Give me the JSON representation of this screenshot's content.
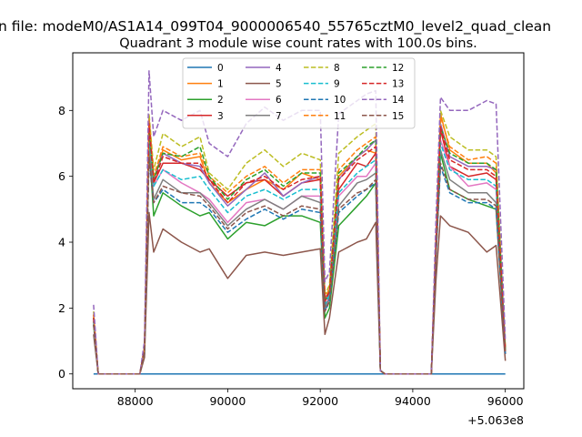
{
  "chart_data": {
    "type": "line",
    "suptitle": "n file: modeM0/AS1A14_099T04_9000006540_55765cztM0_level2_quad_clean",
    "title": "Quadrant 3 module wise count rates with 100.0s bins.",
    "xlabel": "",
    "ylabel": "",
    "x_offset_label": "+5.063e8",
    "xlim": [
      86650,
      96400
    ],
    "ylim": [
      -0.45,
      9.75
    ],
    "x_ticks": [
      88000,
      90000,
      92000,
      94000,
      96000
    ],
    "x_tick_labels": [
      "88000",
      "90000",
      "92000",
      "94000",
      "96000"
    ],
    "y_ticks": [
      0,
      2,
      4,
      6,
      8
    ],
    "y_tick_labels": [
      "0",
      "2",
      "4",
      "6",
      "8"
    ],
    "grid": false,
    "legend": {
      "placement": "top-center",
      "columns": 4
    },
    "x": [
      87100,
      87200,
      88100,
      88200,
      88300,
      88400,
      88600,
      89000,
      89400,
      89600,
      90000,
      90400,
      90800,
      91200,
      91600,
      92000,
      92100,
      92200,
      92400,
      92800,
      93000,
      93200,
      93300,
      93400,
      94400,
      94500,
      94600,
      94800,
      95200,
      95600,
      95800,
      96000
    ],
    "series": [
      {
        "name": "0",
        "color": "#1f77b4",
        "dashed": false,
        "values": [
          0,
          0,
          0,
          0,
          0,
          0,
          0,
          0,
          0,
          0,
          0,
          0,
          0,
          0,
          0,
          0,
          0,
          0,
          0,
          0,
          0,
          0,
          0,
          0,
          0,
          0,
          0,
          0,
          0,
          0,
          0,
          0
        ]
      },
      {
        "name": "1",
        "color": "#ff7f0e",
        "dashed": false,
        "values": [
          1.6,
          0,
          0,
          0.8,
          7.8,
          5.9,
          6.8,
          6.5,
          6.6,
          5.8,
          5.2,
          5.6,
          5.9,
          5.6,
          6.1,
          5.9,
          2.3,
          2.4,
          6.0,
          6.6,
          6.8,
          6.7,
          0.1,
          0,
          0,
          3.8,
          7.9,
          6.8,
          6.4,
          6.4,
          6.1,
          0.8
        ]
      },
      {
        "name": "2",
        "color": "#2ca02c",
        "dashed": false,
        "values": [
          1.5,
          0,
          0,
          0.6,
          7.0,
          4.8,
          5.5,
          5.1,
          4.8,
          4.9,
          4.1,
          4.6,
          4.5,
          4.8,
          4.8,
          4.6,
          1.7,
          2.0,
          4.5,
          5.1,
          5.4,
          5.8,
          0.1,
          0,
          0,
          3.5,
          6.7,
          5.6,
          5.3,
          5.1,
          5.0,
          0.6
        ]
      },
      {
        "name": "3",
        "color": "#d62728",
        "dashed": false,
        "values": [
          1.8,
          0,
          0,
          0.8,
          7.5,
          5.8,
          6.4,
          6.4,
          6.2,
          5.9,
          5.4,
          5.8,
          5.9,
          5.4,
          5.8,
          5.9,
          2.3,
          2.5,
          5.6,
          6.4,
          6.3,
          6.7,
          0.1,
          0,
          0,
          3.9,
          7.4,
          6.3,
          6.0,
          6.1,
          5.9,
          0.7
        ]
      },
      {
        "name": "4",
        "color": "#9467bd",
        "dashed": false,
        "values": [
          1.7,
          0,
          0,
          0.8,
          7.8,
          5.9,
          6.7,
          6.4,
          6.3,
          5.8,
          5.1,
          5.6,
          6.1,
          5.4,
          5.8,
          6.0,
          2.2,
          2.5,
          5.9,
          6.6,
          6.8,
          7.1,
          0.1,
          0,
          0,
          3.8,
          7.6,
          6.6,
          6.3,
          6.3,
          6.2,
          0.7
        ]
      },
      {
        "name": "5",
        "color": "#8c564b",
        "dashed": false,
        "values": [
          1.2,
          0,
          0,
          0.5,
          4.9,
          3.7,
          4.4,
          4.0,
          3.7,
          3.8,
          2.9,
          3.6,
          3.7,
          3.6,
          3.7,
          3.8,
          1.2,
          1.7,
          3.7,
          4.0,
          4.1,
          4.6,
          0.1,
          0,
          0,
          2.8,
          4.8,
          4.5,
          4.3,
          3.7,
          3.9,
          0.4
        ]
      },
      {
        "name": "6",
        "color": "#e377c2",
        "dashed": false,
        "values": [
          1.6,
          0,
          0,
          0.8,
          7.4,
          5.7,
          6.2,
          5.8,
          5.5,
          5.3,
          4.6,
          5.2,
          5.3,
          5.0,
          5.4,
          5.4,
          2.0,
          2.4,
          5.4,
          6.0,
          6.0,
          6.4,
          0.1,
          0,
          0,
          3.7,
          7.1,
          6.3,
          5.7,
          5.8,
          5.6,
          0.6
        ]
      },
      {
        "name": "7",
        "color": "#7f7f7f",
        "dashed": false,
        "values": [
          1.6,
          0,
          0,
          0.7,
          7.0,
          5.3,
          5.9,
          5.5,
          5.5,
          5.2,
          4.5,
          5.0,
          5.3,
          5.0,
          5.4,
          5.2,
          2.0,
          2.3,
          5.1,
          5.8,
          5.9,
          6.1,
          0.1,
          0,
          0,
          3.6,
          6.8,
          5.9,
          5.5,
          5.5,
          5.2,
          0.6
        ]
      },
      {
        "name": "8",
        "color": "#bcbd22",
        "dashed": true,
        "values": [
          1.9,
          0,
          0,
          0.8,
          7.9,
          6.2,
          7.3,
          6.9,
          7.2,
          6.1,
          5.6,
          6.4,
          6.8,
          6.3,
          6.7,
          6.5,
          2.4,
          2.7,
          6.7,
          7.2,
          7.4,
          7.6,
          0.1,
          0,
          0,
          4.1,
          8.0,
          7.2,
          6.8,
          6.8,
          6.6,
          0.8
        ]
      },
      {
        "name": "9",
        "color": "#17becf",
        "dashed": true,
        "values": [
          1.6,
          0,
          0,
          0.8,
          7.3,
          5.7,
          6.2,
          5.9,
          6.0,
          5.6,
          4.9,
          5.4,
          5.6,
          5.3,
          5.6,
          5.6,
          2.1,
          2.4,
          5.5,
          6.1,
          6.3,
          6.5,
          0.1,
          0,
          0,
          3.8,
          7.0,
          6.2,
          5.9,
          5.9,
          5.7,
          0.7
        ]
      },
      {
        "name": "10",
        "color": "#1f77b4",
        "dashed": true,
        "values": [
          1.5,
          0,
          0,
          0.7,
          6.5,
          5.2,
          5.6,
          5.2,
          5.2,
          5.0,
          4.3,
          4.7,
          5.0,
          4.7,
          5.0,
          4.9,
          1.9,
          2.2,
          4.9,
          5.4,
          5.6,
          5.8,
          0.1,
          0,
          0,
          3.5,
          6.3,
          5.5,
          5.2,
          5.2,
          5.0,
          0.6
        ]
      },
      {
        "name": "11",
        "color": "#ff7f0e",
        "dashed": true,
        "values": [
          1.8,
          0,
          0,
          0.8,
          7.7,
          6.0,
          6.9,
          6.6,
          6.7,
          6.0,
          5.5,
          6.0,
          6.3,
          5.8,
          6.2,
          6.2,
          2.3,
          2.6,
          6.2,
          6.8,
          7.0,
          7.2,
          0.1,
          0,
          0,
          3.9,
          7.8,
          6.9,
          6.5,
          6.6,
          6.4,
          0.7
        ]
      },
      {
        "name": "12",
        "color": "#2ca02c",
        "dashed": true,
        "values": [
          1.7,
          0,
          0,
          0.8,
          7.4,
          5.9,
          6.7,
          6.6,
          6.9,
          6.0,
          5.3,
          5.9,
          6.2,
          5.7,
          6.1,
          6.1,
          2.2,
          2.5,
          6.1,
          6.6,
          6.9,
          7.1,
          0.1,
          0,
          0,
          3.8,
          7.5,
          6.7,
          6.4,
          6.4,
          6.2,
          0.7
        ]
      },
      {
        "name": "13",
        "color": "#d62728",
        "dashed": true,
        "values": [
          1.7,
          0,
          0,
          0.8,
          7.6,
          5.8,
          6.6,
          6.4,
          6.4,
          5.9,
          5.2,
          5.8,
          6.0,
          5.6,
          5.9,
          6.0,
          2.2,
          2.5,
          5.9,
          6.5,
          6.7,
          6.9,
          0.1,
          0,
          0,
          3.9,
          7.5,
          6.5,
          6.2,
          6.2,
          6.0,
          0.7
        ]
      },
      {
        "name": "14",
        "color": "#9467bd",
        "dashed": true,
        "values": [
          2.1,
          0,
          0,
          1.0,
          9.2,
          7.2,
          8.0,
          7.7,
          8.0,
          7.0,
          6.6,
          7.6,
          8.1,
          7.7,
          8.0,
          8.0,
          2.8,
          3.1,
          7.9,
          8.3,
          8.5,
          8.6,
          0.1,
          0,
          0,
          4.6,
          8.4,
          8.0,
          8.0,
          8.3,
          8.2,
          1.0
        ]
      },
      {
        "name": "15",
        "color": "#8c564b",
        "dashed": true,
        "values": [
          1.5,
          0,
          0,
          0.7,
          6.6,
          5.2,
          5.7,
          5.5,
          5.4,
          5.1,
          4.4,
          4.9,
          5.1,
          4.8,
          5.1,
          5.0,
          1.9,
          2.2,
          5.0,
          5.5,
          5.6,
          5.9,
          0.1,
          0,
          0,
          3.5,
          6.4,
          5.6,
          5.3,
          5.3,
          5.1,
          0.6
        ]
      }
    ]
  }
}
